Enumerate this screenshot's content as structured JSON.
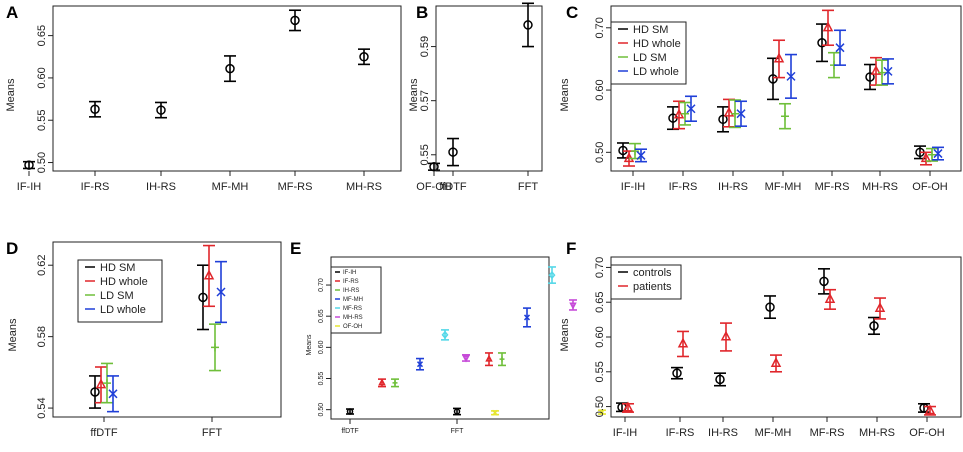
{
  "colors": {
    "black": "#000000",
    "red": "#e0262b",
    "green": "#6fbf3a",
    "blue": "#1f3fd8",
    "brown": "#8b3a3a",
    "orange": "#c87a3a",
    "olive": "#8a9a3a",
    "purple": "#8a3ad0",
    "cyan": "#55d8e8",
    "violet": "#c64ad8",
    "yellow": "#e6e632",
    "navy": "#2d3fb0"
  },
  "chart_data": [
    {
      "panel": "A",
      "type": "errorbar",
      "ylabel": "Means",
      "ylim": [
        0.49,
        0.685
      ],
      "yticks": [
        0.5,
        0.55,
        0.6,
        0.65
      ],
      "ytick_labels": [
        "0.50",
        "0.55",
        "0.60",
        "0.65"
      ],
      "categories": [
        "IF-IH",
        "IF-RS",
        "IH-RS",
        "MF-MH",
        "MF-RS",
        "MH-RS",
        "OF-OH"
      ],
      "series": [
        {
          "name": "",
          "color": "#000000",
          "marker": "circle",
          "values": [
            0.497,
            0.563,
            0.562,
            0.611,
            0.668,
            0.625,
            0.495
          ],
          "errors": [
            0.004,
            0.009,
            0.009,
            0.015,
            0.012,
            0.009,
            0.004
          ]
        }
      ],
      "legend": []
    },
    {
      "panel": "B",
      "type": "errorbar",
      "ylabel": "Means",
      "ylim": [
        0.544,
        0.605
      ],
      "yticks": [
        0.55,
        0.57,
        0.59
      ],
      "ytick_labels": [
        "0.55",
        "0.57",
        "0.59"
      ],
      "categories": [
        "ffDTF",
        "FFT"
      ],
      "series": [
        {
          "name": "",
          "color": "#000000",
          "marker": "circle",
          "values": [
            0.551,
            0.598
          ],
          "errors": [
            0.005,
            0.008
          ]
        }
      ],
      "legend": []
    },
    {
      "panel": "C",
      "type": "errorbar",
      "ylabel": "Means",
      "ylim": [
        0.47,
        0.735
      ],
      "yticks": [
        0.5,
        0.6,
        0.7
      ],
      "ytick_labels": [
        "0.50",
        "0.60",
        "0.70"
      ],
      "categories": [
        "IF-IH",
        "IF-RS",
        "IH-RS",
        "MF-MH",
        "MF-RS",
        "MH-RS",
        "OF-OH"
      ],
      "series": [
        {
          "name": "HD SM",
          "color": "#000000",
          "marker": "circle",
          "values": [
            0.503,
            0.555,
            0.553,
            0.618,
            0.676,
            0.621,
            0.5
          ],
          "errors": [
            0.012,
            0.018,
            0.02,
            0.033,
            0.03,
            0.02,
            0.01
          ]
        },
        {
          "name": "HD whole",
          "color": "#e0262b",
          "marker": "triangle",
          "values": [
            0.49,
            0.56,
            0.563,
            0.65,
            0.7,
            0.63,
            0.49
          ],
          "errors": [
            0.012,
            0.022,
            0.022,
            0.03,
            0.028,
            0.022,
            0.01
          ]
        },
        {
          "name": "LD SM",
          "color": "#6fbf3a",
          "marker": "plus",
          "values": [
            0.502,
            0.562,
            0.562,
            0.558,
            0.64,
            0.628,
            0.496
          ],
          "errors": [
            0.012,
            0.018,
            0.022,
            0.02,
            0.02,
            0.02,
            0.01
          ]
        },
        {
          "name": "LD whole",
          "color": "#1f3fd8",
          "marker": "cross",
          "values": [
            0.495,
            0.57,
            0.562,
            0.622,
            0.668,
            0.63,
            0.498
          ],
          "errors": [
            0.01,
            0.02,
            0.02,
            0.035,
            0.028,
            0.02,
            0.01
          ]
        }
      ],
      "legend": [
        "HD SM",
        "HD whole",
        "LD SM",
        "LD whole"
      ]
    },
    {
      "panel": "D",
      "type": "errorbar",
      "ylabel": "Means",
      "ylim": [
        0.535,
        0.633
      ],
      "yticks": [
        0.54,
        0.58,
        0.62
      ],
      "ytick_labels": [
        "0.54",
        "0.58",
        "0.62"
      ],
      "categories": [
        "ffDTF",
        "FFT"
      ],
      "series": [
        {
          "name": "HD SM",
          "color": "#000000",
          "marker": "circle",
          "values": [
            0.549,
            0.602
          ],
          "errors": [
            0.009,
            0.018
          ]
        },
        {
          "name": "HD whole",
          "color": "#e0262b",
          "marker": "triangle",
          "values": [
            0.553,
            0.614
          ],
          "errors": [
            0.01,
            0.017
          ]
        },
        {
          "name": "LD SM",
          "color": "#6fbf3a",
          "marker": "plus",
          "values": [
            0.554,
            0.574
          ],
          "errors": [
            0.011,
            0.013
          ]
        },
        {
          "name": "LD whole",
          "color": "#1f3fd8",
          "marker": "cross",
          "values": [
            0.548,
            0.605
          ],
          "errors": [
            0.01,
            0.017
          ]
        }
      ],
      "legend": [
        "HD SM",
        "HD whole",
        "LD SM",
        "LD whole"
      ]
    },
    {
      "panel": "E",
      "type": "errorbar",
      "ylabel": "Means",
      "ylim": [
        0.485,
        0.745
      ],
      "yticks": [
        0.5,
        0.55,
        0.6,
        0.65,
        0.7
      ],
      "ytick_labels": [
        "0.50",
        "0.55",
        "0.60",
        "0.65",
        "0.70"
      ],
      "categories": [
        "ffDTF",
        "FFT"
      ],
      "series": [
        {
          "name": "IF-IH",
          "color": "#000000",
          "marker": "circle",
          "values": [
            0.497,
            0.497
          ],
          "errors": [
            0.004,
            0.005
          ]
        },
        {
          "name": "IF-RS",
          "color": "#e0262b",
          "marker": "triangle",
          "values": [
            0.543,
            0.581
          ],
          "errors": [
            0.006,
            0.01
          ]
        },
        {
          "name": "IH-RS",
          "color": "#6fbf3a",
          "marker": "plus",
          "values": [
            0.543,
            0.581
          ],
          "errors": [
            0.006,
            0.01
          ]
        },
        {
          "name": "MF-MH",
          "color": "#1f3fd8",
          "marker": "cross",
          "values": [
            0.573,
            0.648
          ],
          "errors": [
            0.009,
            0.015
          ]
        },
        {
          "name": "MF-RS",
          "color": "#55d8e8",
          "marker": "diamond",
          "values": [
            0.62,
            0.716
          ],
          "errors": [
            0.008,
            0.013
          ]
        },
        {
          "name": "MH-RS",
          "color": "#c64ad8",
          "marker": "triangle-down",
          "values": [
            0.583,
            0.668
          ],
          "errors": [
            0.005,
            0.008
          ]
        },
        {
          "name": "OF-OH",
          "color": "#e6e632",
          "marker": "x",
          "values": [
            0.495,
            0.496
          ],
          "errors": [
            0.003,
            0.003
          ]
        }
      ],
      "legend": [
        "IF-IH",
        "IF-RS",
        "IH-RS",
        "MF-MH",
        "MF-RS",
        "MH-RS",
        "OF-OH"
      ]
    },
    {
      "panel": "F",
      "type": "errorbar",
      "ylabel": "Means",
      "ylim": [
        0.485,
        0.715
      ],
      "yticks": [
        0.5,
        0.55,
        0.6,
        0.65,
        0.7
      ],
      "ytick_labels": [
        "0.50",
        "0.55",
        "0.60",
        "0.65",
        "0.70"
      ],
      "categories": [
        "IF-IH",
        "IF-RS",
        "IH-RS",
        "MF-MH",
        "MF-RS",
        "MH-RS",
        "OF-OH"
      ],
      "series": [
        {
          "name": "controls",
          "color": "#000000",
          "marker": "circle",
          "values": [
            0.499,
            0.548,
            0.539,
            0.643,
            0.68,
            0.616,
            0.498
          ],
          "errors": [
            0.006,
            0.008,
            0.009,
            0.016,
            0.018,
            0.012,
            0.006
          ]
        },
        {
          "name": "patients",
          "color": "#e0262b",
          "marker": "triangle",
          "values": [
            0.498,
            0.59,
            0.6,
            0.562,
            0.654,
            0.641,
            0.494
          ],
          "errors": [
            0.006,
            0.018,
            0.02,
            0.012,
            0.014,
            0.015,
            0.006
          ]
        }
      ],
      "legend": [
        "controls",
        "patients"
      ]
    }
  ]
}
